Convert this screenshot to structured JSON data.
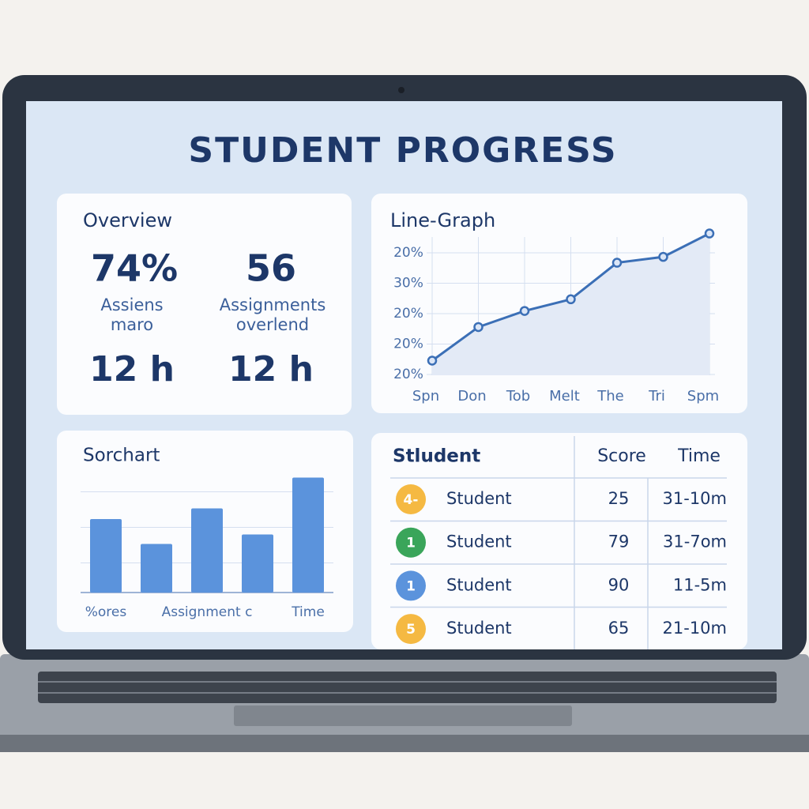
{
  "title": "STUDENT PROGRESS",
  "overview": {
    "title": "Overview",
    "stats": [
      {
        "value": "74%",
        "label": [
          "Assiens",
          "maro"
        ]
      },
      {
        "value": "56",
        "label": [
          "Assignments",
          "overlend"
        ]
      },
      {
        "value": "12 h"
      },
      {
        "value": "12 h"
      }
    ]
  },
  "chart_data": [
    {
      "type": "line",
      "title": "Line-Graph",
      "categories": [
        "Spn",
        "Don",
        "Tob",
        "Melt",
        "The",
        "Tri",
        "Spm"
      ],
      "values": [
        10,
        33,
        44,
        52,
        77,
        81,
        97
      ],
      "y_labels": [
        "20%",
        "30%",
        "20%",
        "20%",
        "20%"
      ],
      "ylim": [
        0,
        100
      ],
      "color": "#3b6fb6",
      "grid": true
    },
    {
      "type": "bar",
      "title": "Sorchart",
      "categories": [
        "%ores",
        null,
        "Assignment c",
        null,
        "Time"
      ],
      "values": [
        62,
        41,
        71,
        49,
        97
      ],
      "ylim": [
        0,
        100
      ],
      "yticks": [
        0,
        25,
        55,
        85
      ],
      "color": "#5b93dc",
      "grid": true
    }
  ],
  "table": {
    "header": [
      "Stludent",
      "Score",
      "Time"
    ],
    "rows": [
      {
        "badge": "4-",
        "badge_color": "#f5b942",
        "name": "Student",
        "score": "25",
        "time": "31-10m"
      },
      {
        "badge": "1",
        "badge_color": "#3aa55a",
        "name": "Student",
        "score": "79",
        "time": "31-7om"
      },
      {
        "badge": "1",
        "badge_color": "#5b93dc",
        "name": "Student",
        "score": "90",
        "time": "11-5m"
      },
      {
        "badge": "5",
        "badge_color": "#f5b942",
        "name": "Student",
        "score": "65",
        "time": "21-10m"
      }
    ]
  }
}
